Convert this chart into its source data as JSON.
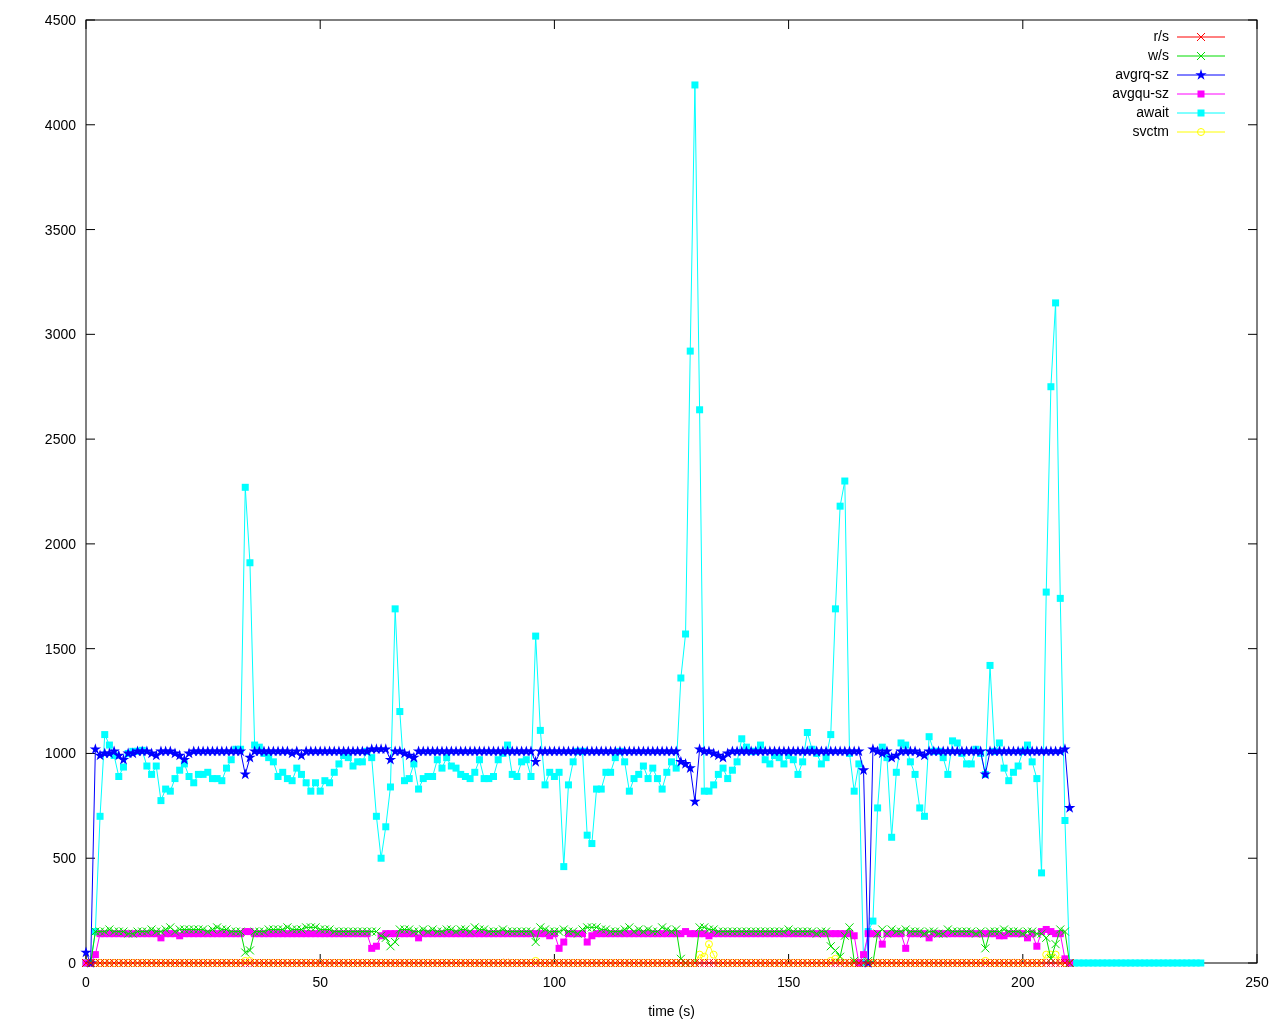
{
  "chart_data": {
    "type": "line",
    "xlabel": "time (s)",
    "xlim": [
      0,
      250
    ],
    "xticks": [
      0,
      50,
      100,
      150,
      200,
      250
    ],
    "ylim": [
      0,
      4500
    ],
    "yticks": [
      0,
      500,
      1000,
      1500,
      2000,
      2500,
      3000,
      3500,
      4000,
      4500
    ],
    "grid": false,
    "legend": "top right",
    "x": [
      0,
      1,
      2,
      3,
      4,
      5,
      6,
      7,
      8,
      9,
      10,
      11,
      12,
      13,
      14,
      15,
      16,
      17,
      18,
      19,
      20,
      21,
      22,
      23,
      24,
      25,
      26,
      27,
      28,
      29,
      30,
      31,
      32,
      33,
      34,
      35,
      36,
      37,
      38,
      39,
      40,
      41,
      42,
      43,
      44,
      45,
      46,
      47,
      48,
      49,
      50,
      51,
      52,
      53,
      54,
      55,
      56,
      57,
      58,
      59,
      60,
      61,
      62,
      63,
      64,
      65,
      66,
      67,
      68,
      69,
      70,
      71,
      72,
      73,
      74,
      75,
      76,
      77,
      78,
      79,
      80,
      81,
      82,
      83,
      84,
      85,
      86,
      87,
      88,
      89,
      90,
      91,
      92,
      93,
      94,
      95,
      96,
      97,
      98,
      99,
      100,
      101,
      102,
      103,
      104,
      105,
      106,
      107,
      108,
      109,
      110,
      111,
      112,
      113,
      114,
      115,
      116,
      117,
      118,
      119,
      120,
      121,
      122,
      123,
      124,
      125,
      126,
      127,
      128,
      129,
      130,
      131,
      132,
      133,
      134,
      135,
      136,
      137,
      138,
      139,
      140,
      141,
      142,
      143,
      144,
      145,
      146,
      147,
      148,
      149,
      150,
      151,
      152,
      153,
      154,
      155,
      156,
      157,
      158,
      159,
      160,
      161,
      162,
      163,
      164,
      165,
      166,
      167,
      168,
      169,
      170,
      171,
      172,
      173,
      174,
      175,
      176,
      177,
      178,
      179,
      180,
      181,
      182,
      183,
      184,
      185,
      186,
      187,
      188,
      189,
      190,
      191,
      192,
      193,
      194,
      195,
      196,
      197,
      198,
      199,
      200,
      201,
      202,
      203,
      204,
      205,
      206,
      207,
      208,
      209,
      210,
      211,
      212,
      213,
      214,
      215,
      216,
      217,
      218,
      219,
      220,
      221,
      222,
      223,
      224,
      225,
      226,
      227,
      228,
      229,
      230,
      231,
      232,
      233,
      234,
      235,
      236,
      237,
      238
    ],
    "series": [
      {
        "name": "r/s",
        "color": "#ff0000",
        "marker": "cross",
        "values": [
          0,
          0,
          0,
          0,
          0,
          0,
          0,
          0,
          0,
          0,
          0,
          0,
          0,
          0,
          0,
          0,
          0,
          0,
          0,
          0,
          0,
          0,
          0,
          0,
          0,
          0,
          0,
          0,
          0,
          0,
          0,
          0,
          0,
          0,
          0,
          0,
          0,
          0,
          0,
          0,
          0,
          0,
          0,
          0,
          0,
          0,
          0,
          0,
          0,
          0,
          0,
          0,
          0,
          0,
          0,
          0,
          0,
          0,
          0,
          0,
          0,
          0,
          0,
          0,
          0,
          0,
          0,
          0,
          0,
          0,
          0,
          0,
          0,
          0,
          0,
          0,
          0,
          0,
          0,
          0,
          0,
          0,
          0,
          0,
          0,
          0,
          0,
          0,
          0,
          0,
          0,
          0,
          0,
          0,
          0,
          0,
          0,
          0,
          0,
          0,
          0,
          0,
          0,
          0,
          0,
          0,
          0,
          0,
          0,
          0,
          0,
          0,
          0,
          0,
          0,
          0,
          0,
          0,
          0,
          0,
          0,
          0,
          0,
          0,
          0,
          0,
          0,
          0,
          0,
          0,
          0,
          0,
          0,
          0,
          0,
          0,
          0,
          0,
          0,
          0,
          0,
          0,
          0,
          0,
          0,
          0,
          0,
          0,
          0,
          0,
          0,
          0,
          0,
          0,
          0,
          0,
          0,
          0,
          0,
          0,
          0,
          0,
          0,
          0,
          0,
          0,
          0,
          0,
          0,
          0,
          0,
          0,
          0,
          0,
          0,
          0,
          0,
          0,
          0,
          0,
          0,
          0,
          0,
          0,
          0,
          0,
          0,
          0,
          0,
          0,
          0,
          0,
          0,
          0,
          0,
          0,
          0,
          0,
          0,
          0,
          0,
          0,
          0,
          0,
          0,
          0,
          0,
          0,
          0,
          0,
          0,
          null,
          null,
          null,
          null,
          null,
          null,
          null,
          null,
          null,
          null,
          null,
          null,
          null,
          null,
          null,
          null,
          null,
          null,
          null,
          null,
          null,
          null,
          null,
          null,
          null,
          null,
          null,
          null
        ]
      },
      {
        "name": "w/s",
        "color": "#00dd00",
        "marker": "cross",
        "values": [
          null,
          0,
          150,
          150,
          150,
          160,
          150,
          150,
          150,
          140,
          140,
          150,
          150,
          150,
          160,
          150,
          150,
          160,
          170,
          150,
          160,
          160,
          160,
          160,
          160,
          160,
          150,
          160,
          170,
          160,
          160,
          150,
          150,
          150,
          50,
          60,
          150,
          150,
          150,
          160,
          160,
          160,
          160,
          170,
          160,
          160,
          160,
          170,
          170,
          170,
          160,
          160,
          160,
          150,
          150,
          150,
          150,
          150,
          150,
          150,
          150,
          150,
          150,
          130,
          120,
          80,
          100,
          160,
          160,
          160,
          150,
          150,
          160,
          150,
          160,
          150,
          150,
          160,
          160,
          150,
          160,
          160,
          150,
          170,
          160,
          160,
          150,
          150,
          150,
          160,
          150,
          150,
          150,
          150,
          150,
          150,
          100,
          170,
          160,
          150,
          150,
          150,
          160,
          150,
          150,
          140,
          160,
          170,
          170,
          170,
          160,
          160,
          150,
          150,
          150,
          160,
          170,
          150,
          160,
          150,
          160,
          150,
          150,
          170,
          160,
          150,
          160,
          20,
          0,
          null,
          0,
          170,
          170,
          160,
          160,
          150,
          150,
          150,
          150,
          150,
          150,
          150,
          150,
          150,
          150,
          150,
          150,
          150,
          150,
          150,
          160,
          150,
          150,
          150,
          150,
          150,
          140,
          150,
          150,
          80,
          60,
          30,
          130,
          170,
          10,
          0,
          null,
          10,
          0,
          140,
          160,
          140,
          160,
          150,
          150,
          160,
          150,
          150,
          150,
          140,
          150,
          150,
          140,
          140,
          160,
          150,
          150,
          150,
          150,
          150,
          140,
          150,
          70,
          150,
          150,
          150,
          160,
          150,
          150,
          150,
          140,
          150,
          150,
          140,
          140,
          120,
          20,
          90,
          160,
          150,
          0,
          null,
          null,
          null,
          null,
          null,
          null,
          null,
          null,
          null,
          null,
          null,
          null,
          null,
          null,
          null,
          null,
          null,
          null,
          null,
          null,
          null,
          null,
          null,
          null,
          null,
          null,
          null,
          null
        ]
      },
      {
        "name": "avgrq-sz",
        "color": "#0000ff",
        "marker": "star",
        "values": [
          50,
          0,
          1020,
          990,
          1000,
          1000,
          1010,
          990,
          970,
          1000,
          1000,
          1010,
          1010,
          1010,
          1000,
          990,
          1010,
          1010,
          1010,
          1000,
          990,
          970,
          1000,
          1010,
          1010,
          1010,
          1010,
          1010,
          1010,
          1010,
          1010,
          1010,
          1010,
          1010,
          900,
          980,
          1010,
          1010,
          1010,
          1010,
          1010,
          1010,
          1010,
          1010,
          1000,
          1010,
          990,
          1010,
          1010,
          1010,
          1010,
          1010,
          1010,
          1010,
          1010,
          1010,
          1010,
          1010,
          1010,
          1010,
          1010,
          1020,
          1020,
          1020,
          1020,
          970,
          1010,
          1010,
          1000,
          990,
          980,
          1010,
          1010,
          1010,
          1010,
          1010,
          1010,
          1010,
          1010,
          1010,
          1010,
          1010,
          1010,
          1010,
          1010,
          1010,
          1010,
          1010,
          1010,
          1010,
          1010,
          1010,
          1010,
          1010,
          1010,
          1010,
          960,
          1010,
          1010,
          1010,
          1010,
          1010,
          1010,
          1010,
          1010,
          1010,
          1010,
          1010,
          1010,
          1010,
          1010,
          1010,
          1010,
          1010,
          1010,
          1010,
          1010,
          1010,
          1010,
          1010,
          1010,
          1010,
          1010,
          1010,
          1010,
          1010,
          1010,
          960,
          950,
          930,
          770,
          1020,
          1010,
          1010,
          1000,
          990,
          980,
          1000,
          1010,
          1010,
          1010,
          1010,
          1010,
          1010,
          1010,
          1010,
          1010,
          1010,
          1010,
          1010,
          1010,
          1010,
          1010,
          1010,
          1010,
          1010,
          1010,
          1010,
          1010,
          1010,
          1010,
          1010,
          1010,
          1010,
          1010,
          1010,
          920,
          0,
          1020,
          1010,
          1000,
          1010,
          980,
          990,
          1010,
          1010,
          1010,
          1010,
          1000,
          990,
          1010,
          1010,
          1010,
          1010,
          1010,
          1010,
          1010,
          1010,
          1010,
          1010,
          1010,
          1010,
          900,
          1010,
          1010,
          1010,
          1010,
          1010,
          1010,
          1010,
          1010,
          1010,
          1010,
          1010,
          1010,
          1010,
          1010,
          1010,
          1010,
          1020,
          740,
          null,
          null,
          null,
          null,
          null,
          null,
          null,
          null,
          null,
          null,
          null,
          null,
          null,
          null,
          null,
          null,
          null,
          null,
          null,
          null,
          null,
          null,
          null,
          null,
          null,
          null,
          null,
          null
        ]
      },
      {
        "name": "avgqu-sz",
        "color": "#ff00ff",
        "marker": "square",
        "values": [
          0,
          0,
          40,
          140,
          140,
          140,
          140,
          140,
          140,
          140,
          140,
          140,
          140,
          140,
          140,
          140,
          120,
          140,
          140,
          140,
          130,
          140,
          140,
          140,
          140,
          140,
          140,
          140,
          140,
          140,
          140,
          140,
          140,
          140,
          150,
          150,
          140,
          140,
          140,
          140,
          140,
          140,
          140,
          140,
          140,
          140,
          140,
          140,
          140,
          140,
          140,
          140,
          140,
          140,
          140,
          140,
          140,
          140,
          140,
          140,
          140,
          70,
          80,
          130,
          140,
          140,
          140,
          140,
          140,
          140,
          140,
          120,
          140,
          140,
          140,
          140,
          140,
          140,
          140,
          140,
          140,
          140,
          140,
          140,
          140,
          140,
          140,
          140,
          140,
          140,
          140,
          140,
          140,
          140,
          140,
          140,
          140,
          140,
          140,
          130,
          140,
          70,
          100,
          140,
          140,
          140,
          140,
          100,
          130,
          140,
          140,
          140,
          140,
          140,
          140,
          140,
          140,
          140,
          140,
          140,
          140,
          140,
          140,
          140,
          140,
          140,
          140,
          140,
          150,
          140,
          140,
          140,
          140,
          130,
          140,
          140,
          140,
          140,
          140,
          140,
          140,
          140,
          140,
          140,
          140,
          140,
          140,
          140,
          140,
          140,
          140,
          140,
          140,
          140,
          140,
          140,
          140,
          140,
          140,
          140,
          140,
          140,
          140,
          140,
          130,
          0,
          40,
          140,
          140,
          140,
          90,
          140,
          140,
          140,
          140,
          70,
          140,
          140,
          140,
          140,
          120,
          140,
          140,
          140,
          140,
          140,
          140,
          140,
          140,
          140,
          140,
          140,
          140,
          140,
          140,
          130,
          130,
          140,
          140,
          140,
          140,
          120,
          140,
          80,
          150,
          160,
          150,
          140,
          140,
          20,
          0,
          null,
          null,
          null,
          null,
          null,
          null,
          null,
          null,
          null,
          null,
          null,
          null,
          null,
          null,
          null,
          null,
          null,
          null,
          null,
          null,
          null,
          null,
          null,
          null,
          null,
          null,
          null,
          null
        ]
      },
      {
        "name": "await",
        "color": "#00ffff",
        "marker": "square",
        "values": [
          0,
          0,
          150,
          700,
          1090,
          1040,
          990,
          890,
          935,
          1000,
          1010,
          1010,
          1015,
          940,
          900,
          940,
          775,
          830,
          820,
          880,
          920,
          950,
          890,
          860,
          900,
          900,
          910,
          880,
          880,
          870,
          930,
          970,
          1020,
          1020,
          2270,
          1910,
          1040,
          1030,
          1000,
          980,
          960,
          890,
          910,
          880,
          870,
          930,
          900,
          860,
          820,
          860,
          820,
          870,
          860,
          910,
          950,
          990,
          980,
          940,
          960,
          960,
          1010,
          980,
          700,
          500,
          650,
          840,
          1690,
          1200,
          870,
          880,
          950,
          830,
          880,
          890,
          890,
          970,
          930,
          980,
          940,
          930,
          900,
          890,
          880,
          910,
          970,
          880,
          880,
          890,
          970,
          1000,
          1040,
          900,
          890,
          960,
          970,
          890,
          1560,
          1110,
          850,
          910,
          890,
          910,
          460,
          850,
          960,
          1010,
          1010,
          610,
          570,
          830,
          830,
          910,
          910,
          980,
          1010,
          960,
          820,
          880,
          900,
          940,
          880,
          930,
          880,
          830,
          910,
          960,
          930,
          1360,
          1570,
          2920,
          4190,
          2640,
          820,
          820,
          850,
          900,
          930,
          880,
          920,
          960,
          1070,
          1030,
          1010,
          1010,
          1040,
          970,
          950,
          990,
          980,
          950,
          990,
          970,
          900,
          960,
          1100,
          1020,
          1000,
          950,
          980,
          1090,
          1690,
          2180,
          2300,
          1000,
          820,
          950,
          0,
          150,
          200,
          740,
          1030,
          980,
          600,
          910,
          1050,
          1040,
          960,
          900,
          740,
          700,
          1080,
          1010,
          1010,
          980,
          900,
          1060,
          1050,
          1000,
          950,
          950,
          1020,
          1000,
          900,
          1420,
          1010,
          1050,
          930,
          870,
          910,
          940,
          1010,
          1040,
          960,
          880,
          430,
          1770,
          2750,
          3150,
          1740,
          680,
          0,
          0,
          0,
          0,
          0,
          0,
          0,
          0,
          0,
          0,
          0,
          0,
          0,
          0,
          0,
          0,
          0,
          0,
          0,
          0,
          0,
          0,
          0,
          0,
          0,
          0,
          0,
          0,
          0
        ]
      },
      {
        "name": "svctm",
        "color": "#ffff00",
        "marker": "circle",
        "values": [
          0,
          0,
          0,
          0,
          0,
          0,
          0,
          0,
          0,
          0,
          0,
          0,
          0,
          0,
          0,
          0,
          0,
          0,
          0,
          0,
          0,
          0,
          0,
          0,
          0,
          0,
          0,
          0,
          0,
          0,
          0,
          0,
          0,
          0,
          10,
          10,
          0,
          0,
          0,
          0,
          0,
          0,
          0,
          0,
          0,
          0,
          0,
          0,
          0,
          0,
          0,
          0,
          0,
          0,
          0,
          0,
          0,
          0,
          0,
          0,
          0,
          0,
          0,
          0,
          0,
          0,
          0,
          0,
          0,
          0,
          0,
          0,
          0,
          0,
          0,
          0,
          0,
          0,
          0,
          0,
          0,
          0,
          0,
          0,
          0,
          0,
          0,
          0,
          0,
          0,
          0,
          0,
          0,
          0,
          0,
          0,
          10,
          0,
          0,
          0,
          0,
          0,
          0,
          0,
          0,
          0,
          0,
          0,
          0,
          0,
          0,
          0,
          0,
          0,
          0,
          0,
          0,
          0,
          0,
          0,
          0,
          0,
          0,
          0,
          0,
          0,
          0,
          0,
          0,
          0,
          0,
          40,
          30,
          90,
          40,
          0,
          0,
          0,
          0,
          0,
          0,
          0,
          0,
          0,
          0,
          0,
          0,
          0,
          0,
          0,
          0,
          0,
          0,
          0,
          0,
          0,
          0,
          0,
          0,
          10,
          20,
          10,
          0,
          0,
          0,
          0,
          0,
          0,
          0,
          0,
          0,
          0,
          0,
          0,
          0,
          0,
          0,
          0,
          0,
          0,
          0,
          0,
          0,
          0,
          0,
          0,
          0,
          0,
          0,
          0,
          0,
          0,
          10,
          0,
          0,
          0,
          0,
          0,
          0,
          0,
          0,
          0,
          0,
          0,
          0,
          40,
          40,
          40,
          10,
          0,
          0,
          null,
          null,
          null,
          null,
          null,
          null,
          null,
          null,
          null,
          null,
          null,
          null,
          null,
          null,
          null,
          null,
          null,
          null,
          null,
          null,
          null,
          null,
          null,
          null,
          null,
          null,
          null,
          null
        ]
      }
    ]
  }
}
